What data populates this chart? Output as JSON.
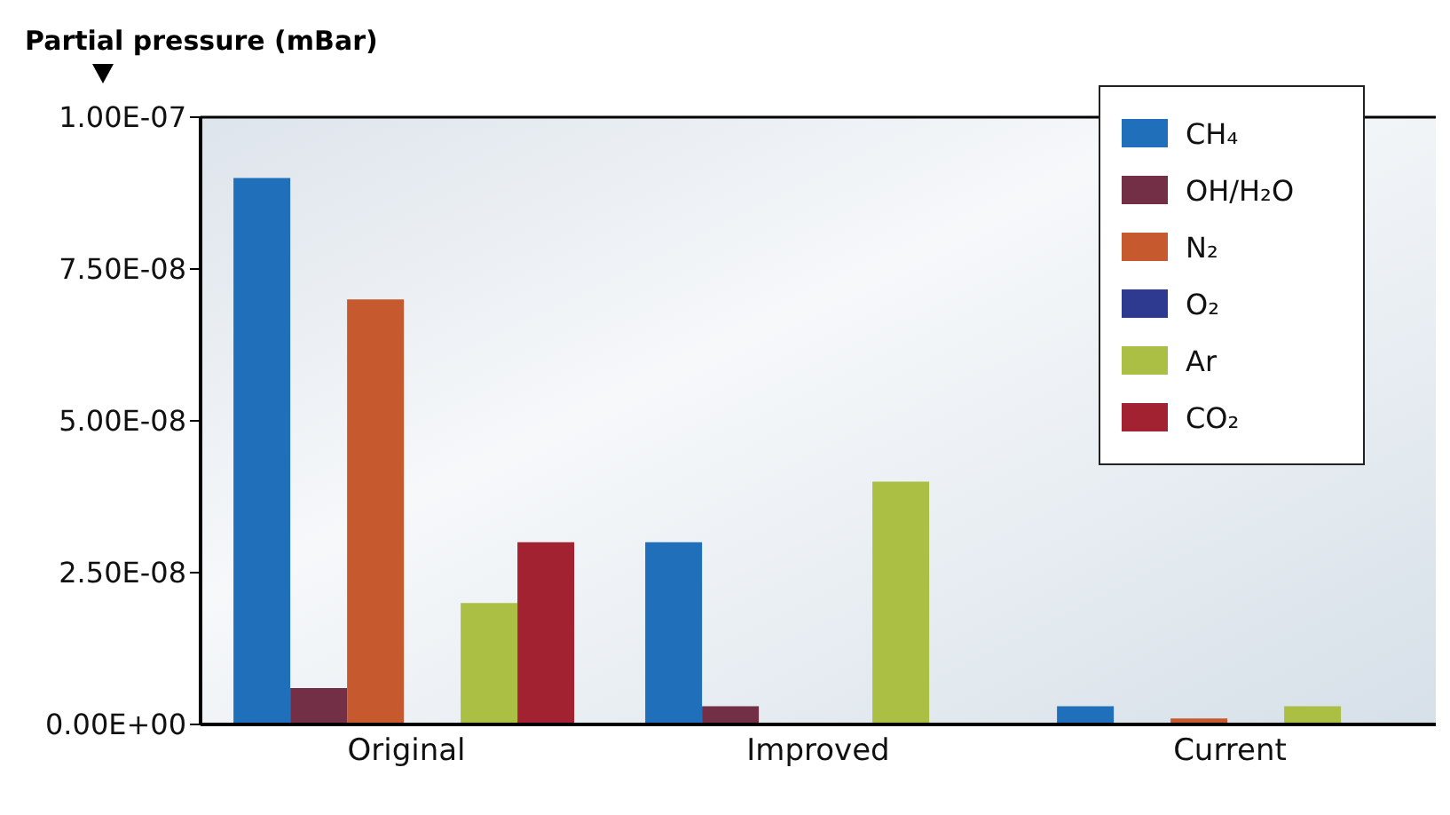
{
  "chart_data": {
    "type": "bar",
    "ylabel": "Partial pressure (mBar)",
    "categories": [
      "Original",
      "Improved",
      "Current"
    ],
    "series": [
      {
        "name": "CH₄",
        "color": "#1f6fba",
        "values": [
          9e-08,
          3e-08,
          3e-09
        ]
      },
      {
        "name": "OH/H₂O",
        "color": "#722f45",
        "values": [
          6e-09,
          3e-09,
          null
        ]
      },
      {
        "name": "N₂",
        "color": "#c65a2e",
        "values": [
          7e-08,
          null,
          1e-09
        ]
      },
      {
        "name": "O₂",
        "color": "#2e3a8f",
        "values": [
          null,
          null,
          null
        ]
      },
      {
        "name": "Ar",
        "color": "#acbf45",
        "values": [
          2e-08,
          4e-08,
          3e-09
        ]
      },
      {
        "name": "CO₂",
        "color": "#a32232",
        "values": [
          3e-08,
          null,
          null
        ]
      }
    ],
    "ylim": [
      0,
      1e-07
    ],
    "yticks": [
      {
        "value": 0,
        "label": "0.00E+00"
      },
      {
        "value": 2.5e-08,
        "label": "2.50E-08"
      },
      {
        "value": 5e-08,
        "label": "5.00E-08"
      },
      {
        "value": 7.5e-08,
        "label": "7.50E-08"
      },
      {
        "value": 1e-07,
        "label": "1.00E-07"
      }
    ],
    "grid": false,
    "legend": "top right"
  }
}
